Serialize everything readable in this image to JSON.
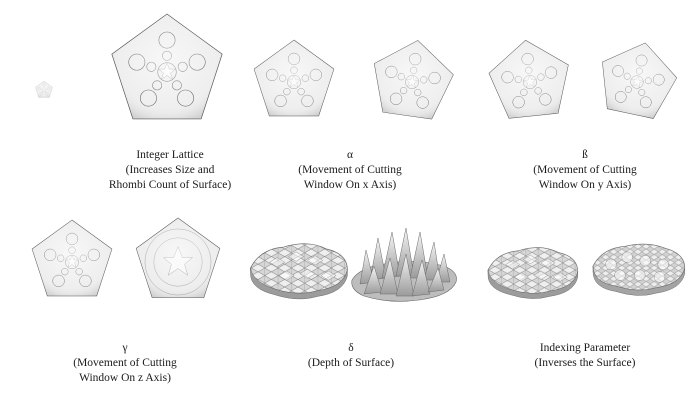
{
  "captions": {
    "integer_lattice": {
      "title": "Integer Lattice",
      "line2": "(Increases Size and",
      "line3": "Rhombi Count of Surface)"
    },
    "alpha": {
      "title": "α",
      "line2": "(Movement of Cutting",
      "line3": "Window On x Axis)"
    },
    "beta": {
      "title": "ß",
      "line2": "(Movement of Cutting",
      "line3": "Window On y Axis)"
    },
    "gamma": {
      "title": "γ",
      "line2": "(Movement of Cutting",
      "line3": "Window On z Axis)"
    },
    "delta": {
      "title": "δ",
      "line2": "(Depth of Surface)"
    },
    "indexing": {
      "title": "Indexing Parameter",
      "line2": "(Inverses the Surface)"
    }
  },
  "colors": {
    "stroke": "#5a5a5a",
    "fill_light": "#f4f4f4",
    "fill_mid": "#c9c9c9",
    "fill_dark": "#8f8f8f"
  }
}
